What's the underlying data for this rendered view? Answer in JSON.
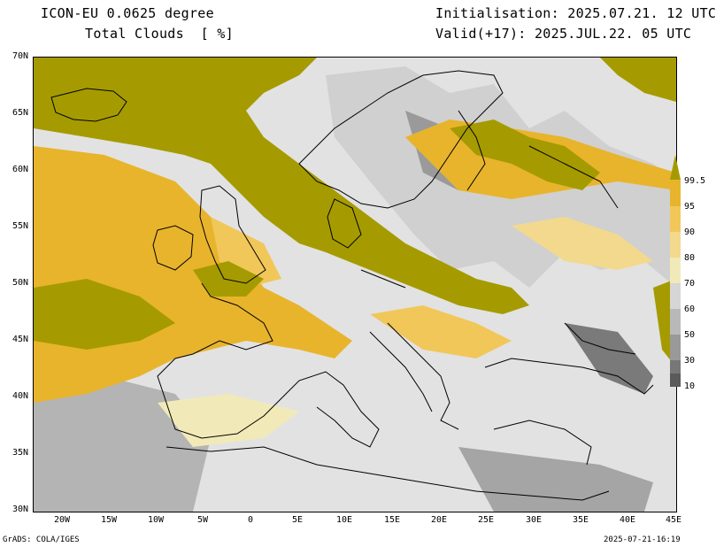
{
  "header": {
    "model": "ICON-EU 0.0625 degree",
    "variable": "Total Clouds  [ %]",
    "init": "Initialisation: 2025.07.21. 12 UTC",
    "valid": "Valid(+17): 2025.JUL.22. 05 UTC"
  },
  "axes": {
    "lat_labels": [
      "70N",
      "65N",
      "60N",
      "55N",
      "50N",
      "45N",
      "40N",
      "35N",
      "30N"
    ],
    "lon_labels": [
      "20W",
      "15W",
      "10W",
      "5W",
      "0",
      "5E",
      "10E",
      "15E",
      "20E",
      "25E",
      "30E",
      "35E",
      "40E",
      "45E"
    ],
    "lat_range": [
      30,
      70
    ],
    "lon_range": [
      -23,
      45
    ]
  },
  "colorbar": {
    "labels": [
      "99.5",
      "95",
      "90",
      "80",
      "70",
      "60",
      "50",
      "30",
      "10"
    ],
    "colors": [
      "#a59b00",
      "#e8b42c",
      "#f1c75a",
      "#f3d98d",
      "#f1eab8",
      "#d6d6d6",
      "#b9b9b9",
      "#999999",
      "#777777",
      "#5a5a5a"
    ]
  },
  "footer": {
    "left": "GrADS: COLA/IGES",
    "right": "2025-07-21-16:19"
  }
}
